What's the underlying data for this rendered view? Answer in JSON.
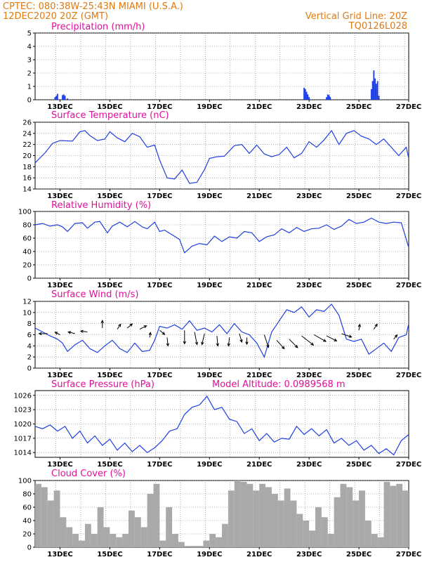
{
  "header": {
    "line1_left": "CPTEC:   080:38W-25:43N   MIAMI (U.S.A.)",
    "line2_left": "12DEC2020 20Z (GMT)",
    "line2_right": "Vertical Grid Line: 20Z",
    "line3_right": "TQ0126L028"
  },
  "colors": {
    "header": "#e07a10",
    "title": "#e0109a",
    "line": "#1f3fe0",
    "cloud": "#a9a9a9",
    "arrow": "#000000"
  },
  "chart_data": [
    {
      "id": "precip",
      "type": "bar",
      "title": "Precipitation (mm/h)",
      "ylim": [
        0,
        5
      ],
      "yticks": [
        0,
        1,
        2,
        3,
        4,
        5
      ],
      "xticks": [
        "13DEC",
        "15DEC",
        "17DEC",
        "19DEC",
        "21DEC",
        "23DEC",
        "25DEC",
        "27DEC"
      ],
      "x_unit": "day of December 2020 (decimal, GMT)",
      "x": [
        12.8,
        12.85,
        12.9,
        13.1,
        13.15,
        13.2,
        13.3,
        22.8,
        22.85,
        22.9,
        22.95,
        23.0,
        23.7,
        23.75,
        23.8,
        23.85,
        25.5,
        25.55,
        25.6,
        25.65,
        25.7,
        25.75,
        25.8
      ],
      "values": [
        0.2,
        0.3,
        0.45,
        0.35,
        0.4,
        0.3,
        0.1,
        0.9,
        0.8,
        0.6,
        0.4,
        0.2,
        0.2,
        0.4,
        0.35,
        0.2,
        0.8,
        1.4,
        2.2,
        1.6,
        1.2,
        1.4,
        0.3
      ]
    },
    {
      "id": "temp",
      "type": "line",
      "title": "Surface Temperature (nC)",
      "ylim": [
        14,
        26
      ],
      "yticks": [
        14,
        16,
        18,
        20,
        22,
        24,
        26
      ],
      "xticks": [
        "13DEC",
        "15DEC",
        "17DEC",
        "19DEC",
        "21DEC",
        "23DEC",
        "25DEC",
        "27DEC"
      ],
      "x": [
        12.0,
        12.4,
        12.7,
        13.0,
        13.5,
        13.8,
        14.0,
        14.2,
        14.5,
        14.8,
        15.0,
        15.3,
        15.6,
        15.9,
        16.2,
        16.5,
        16.8,
        17.0,
        17.3,
        17.6,
        17.9,
        18.2,
        18.5,
        18.8,
        19.0,
        19.3,
        19.6,
        20.0,
        20.3,
        20.6,
        20.9,
        21.2,
        21.5,
        21.8,
        22.1,
        22.4,
        22.7,
        23.0,
        23.3,
        23.6,
        23.9,
        24.2,
        24.5,
        24.8,
        25.1,
        25.4,
        25.7,
        26.0,
        26.3,
        26.6,
        26.9,
        27.0
      ],
      "values": [
        18.7,
        20.5,
        22.2,
        22.7,
        22.6,
        24.3,
        24.5,
        23.6,
        22.7,
        23.0,
        24.3,
        23.2,
        22.5,
        24.0,
        23.4,
        21.5,
        21.9,
        19.2,
        16.0,
        15.8,
        17.4,
        15.0,
        15.2,
        17.5,
        19.5,
        19.8,
        19.9,
        21.8,
        22.0,
        20.4,
        21.9,
        20.3,
        19.8,
        20.2,
        21.5,
        19.6,
        20.4,
        22.5,
        21.5,
        22.8,
        24.5,
        22.0,
        24.0,
        24.5,
        23.5,
        23.0,
        22.0,
        23.0,
        21.5,
        20.0,
        21.5,
        19.5
      ]
    },
    {
      "id": "rh",
      "type": "line",
      "title": "Relative Humidity (%)",
      "ylim": [
        0,
        100
      ],
      "yticks": [
        0,
        20,
        40,
        60,
        80,
        100
      ],
      "xticks": [
        "13DEC",
        "15DEC",
        "17DEC",
        "19DEC",
        "21DEC",
        "23DEC",
        "25DEC",
        "27DEC"
      ],
      "x": [
        12.0,
        12.3,
        12.6,
        12.9,
        13.1,
        13.3,
        13.6,
        13.9,
        14.1,
        14.4,
        14.6,
        14.9,
        15.1,
        15.4,
        15.7,
        16.0,
        16.3,
        16.5,
        16.8,
        17.0,
        17.2,
        17.5,
        17.8,
        18.0,
        18.3,
        18.6,
        18.9,
        19.2,
        19.5,
        19.8,
        20.1,
        20.4,
        20.7,
        21.0,
        21.3,
        21.6,
        21.9,
        22.2,
        22.5,
        22.8,
        23.1,
        23.4,
        23.7,
        24.0,
        24.3,
        24.6,
        24.9,
        25.2,
        25.5,
        25.8,
        26.1,
        26.4,
        26.7,
        27.0
      ],
      "values": [
        80,
        82,
        78,
        80,
        77,
        70,
        82,
        83,
        75,
        84,
        85,
        68,
        78,
        84,
        77,
        85,
        77,
        74,
        84,
        70,
        72,
        65,
        58,
        38,
        48,
        52,
        50,
        63,
        55,
        62,
        60,
        70,
        68,
        55,
        62,
        65,
        74,
        68,
        76,
        70,
        74,
        75,
        80,
        73,
        78,
        88,
        82,
        84,
        90,
        84,
        82,
        84,
        83,
        46
      ]
    },
    {
      "id": "wind",
      "type": "line",
      "title": "Surface Wind (m/s)",
      "ylim": [
        0,
        12
      ],
      "yticks": [
        0,
        2,
        4,
        6,
        8,
        10,
        12
      ],
      "xticks": [
        "13DEC",
        "15DEC",
        "17DEC",
        "19DEC",
        "21DEC",
        "23DEC",
        "25DEC",
        "27DEC"
      ],
      "x": [
        12.0,
        12.3,
        12.6,
        12.9,
        13.1,
        13.3,
        13.6,
        13.9,
        14.2,
        14.5,
        14.8,
        15.1,
        15.4,
        15.7,
        16.0,
        16.3,
        16.6,
        16.8,
        17.0,
        17.3,
        17.6,
        17.9,
        18.2,
        18.5,
        18.8,
        19.1,
        19.4,
        19.7,
        20.0,
        20.3,
        20.6,
        20.9,
        21.2,
        21.5,
        21.8,
        22.1,
        22.4,
        22.7,
        23.0,
        23.3,
        23.6,
        23.9,
        24.2,
        24.5,
        24.8,
        25.1,
        25.4,
        25.7,
        26.0,
        26.3,
        26.6,
        26.9,
        27.0
      ],
      "values": [
        7.2,
        6.5,
        5.8,
        5.2,
        4.5,
        3.0,
        4.2,
        5.0,
        3.5,
        2.8,
        4.0,
        5.0,
        3.5,
        2.8,
        4.5,
        3.0,
        3.2,
        5.0,
        7.5,
        7.2,
        7.8,
        7.0,
        8.5,
        6.8,
        7.2,
        6.5,
        7.8,
        6.2,
        8.0,
        6.5,
        6.0,
        4.5,
        2.0,
        6.5,
        8.5,
        10.5,
        10.0,
        11.0,
        9.2,
        10.5,
        10.2,
        11.5,
        9.5,
        5.2,
        4.8,
        5.2,
        2.5,
        3.5,
        4.5,
        3.0,
        5.5,
        6.0,
        8.0
      ],
      "arrows": [
        {
          "x": 12.5,
          "y": 6.2,
          "u": -1.0,
          "v": 0.0
        },
        {
          "x": 13.0,
          "y": 6.0,
          "u": -0.6,
          "v": 0.3
        },
        {
          "x": 13.6,
          "y": 6.2,
          "u": -0.8,
          "v": 0.2
        },
        {
          "x": 14.1,
          "y": 6.5,
          "u": -0.8,
          "v": 0.1
        },
        {
          "x": 14.7,
          "y": 7.2,
          "u": 0.0,
          "v": 0.9
        },
        {
          "x": 15.3,
          "y": 7.0,
          "u": 0.4,
          "v": 0.6
        },
        {
          "x": 15.7,
          "y": 7.2,
          "u": 0.6,
          "v": 0.5
        },
        {
          "x": 16.2,
          "y": 7.0,
          "u": 0.8,
          "v": 0.4
        },
        {
          "x": 16.6,
          "y": 5.5,
          "u": 0.1,
          "v": 0.6
        },
        {
          "x": 17.0,
          "y": 6.8,
          "u": 0.6,
          "v": -0.5
        },
        {
          "x": 17.3,
          "y": 5.5,
          "u": 0.1,
          "v": -1.0
        },
        {
          "x": 18.0,
          "y": 6.8,
          "u": 0.0,
          "v": -1.6
        },
        {
          "x": 18.4,
          "y": 6.5,
          "u": 0.3,
          "v": -1.5
        },
        {
          "x": 18.8,
          "y": 6.2,
          "u": -0.3,
          "v": -1.3
        },
        {
          "x": 19.3,
          "y": 5.8,
          "u": 0.1,
          "v": -1.2
        },
        {
          "x": 19.8,
          "y": 5.5,
          "u": -0.1,
          "v": -1.0
        },
        {
          "x": 20.2,
          "y": 6.2,
          "u": 0.3,
          "v": -1.0
        },
        {
          "x": 20.5,
          "y": 5.5,
          "u": 0.0,
          "v": -0.8
        },
        {
          "x": 21.2,
          "y": 6.0,
          "u": 0.5,
          "v": -1.5
        },
        {
          "x": 21.7,
          "y": 5.0,
          "u": 0.9,
          "v": -1.0
        },
        {
          "x": 22.2,
          "y": 5.2,
          "u": 1.0,
          "v": -1.0
        },
        {
          "x": 22.7,
          "y": 5.8,
          "u": 1.4,
          "v": -1.1
        },
        {
          "x": 23.2,
          "y": 6.0,
          "u": 1.4,
          "v": -0.8
        },
        {
          "x": 23.7,
          "y": 5.8,
          "u": 1.2,
          "v": -0.6
        },
        {
          "x": 24.3,
          "y": 6.2,
          "u": 1.2,
          "v": -0.4
        },
        {
          "x": 25.0,
          "y": 6.8,
          "u": 0.1,
          "v": 0.7
        },
        {
          "x": 25.6,
          "y": 7.0,
          "u": 0.4,
          "v": 0.6
        },
        {
          "x": 26.4,
          "y": 5.2,
          "u": 0.4,
          "v": 0.5
        }
      ]
    },
    {
      "id": "pressure",
      "type": "line",
      "title": "Surface Pressure (hPa)",
      "annotation": "Model Altitude: 0.0989568 m",
      "ylim": [
        1013,
        1027
      ],
      "yticks": [
        1014,
        1017,
        1020,
        1023,
        1026
      ],
      "xticks": [
        "13DEC",
        "15DEC",
        "17DEC",
        "19DEC",
        "21DEC",
        "23DEC",
        "25DEC",
        "27DEC"
      ],
      "x": [
        12.0,
        12.3,
        12.6,
        12.9,
        13.2,
        13.5,
        13.8,
        14.1,
        14.4,
        14.7,
        15.0,
        15.3,
        15.6,
        15.9,
        16.2,
        16.5,
        16.8,
        17.1,
        17.4,
        17.7,
        18.0,
        18.3,
        18.6,
        18.9,
        19.2,
        19.5,
        19.8,
        20.1,
        20.4,
        20.7,
        21.0,
        21.3,
        21.6,
        21.9,
        22.2,
        22.5,
        22.8,
        23.1,
        23.4,
        23.7,
        24.0,
        24.3,
        24.6,
        24.9,
        25.2,
        25.5,
        25.8,
        26.1,
        26.4,
        26.7,
        27.0
      ],
      "values": [
        1019.5,
        1019.0,
        1019.8,
        1018.5,
        1019.5,
        1017.0,
        1018.5,
        1016.0,
        1017.5,
        1015.5,
        1016.8,
        1014.5,
        1016.0,
        1014.2,
        1015.5,
        1014.0,
        1015.0,
        1016.5,
        1018.5,
        1019.0,
        1022.0,
        1023.5,
        1024.0,
        1025.8,
        1023.0,
        1023.5,
        1021.0,
        1020.5,
        1018.0,
        1019.0,
        1016.5,
        1018.0,
        1016.2,
        1017.0,
        1016.8,
        1019.5,
        1017.8,
        1019.0,
        1017.5,
        1018.8,
        1016.0,
        1017.0,
        1015.5,
        1016.5,
        1014.5,
        1015.5,
        1013.8,
        1014.8,
        1013.5,
        1016.5,
        1017.8
      ]
    },
    {
      "id": "cloud",
      "type": "bar",
      "title": "Cloud Cover (%)",
      "ylim": [
        0,
        100
      ],
      "yticks": [
        0,
        20,
        40,
        60,
        80,
        100
      ],
      "xticks": [
        "13DEC",
        "15DEC",
        "17DEC",
        "19DEC",
        "21DEC",
        "23DEC",
        "25DEC",
        "27DEC"
      ],
      "x": [
        12.0,
        12.25,
        12.5,
        12.75,
        13.0,
        13.25,
        13.5,
        13.75,
        14.0,
        14.25,
        14.5,
        14.75,
        15.0,
        15.25,
        15.5,
        15.75,
        16.0,
        16.25,
        16.5,
        16.75,
        17.0,
        17.25,
        17.5,
        17.75,
        18.0,
        18.25,
        18.5,
        18.75,
        19.0,
        19.25,
        19.5,
        19.75,
        20.0,
        20.25,
        20.5,
        20.75,
        21.0,
        21.25,
        21.5,
        21.75,
        22.0,
        22.25,
        22.5,
        22.75,
        23.0,
        23.25,
        23.5,
        23.75,
        24.0,
        24.25,
        24.5,
        24.75,
        25.0,
        25.25,
        25.5,
        25.75,
        26.0,
        26.25,
        26.5,
        26.75,
        27.0
      ],
      "values": [
        95,
        90,
        70,
        85,
        45,
        30,
        20,
        10,
        35,
        20,
        60,
        30,
        20,
        15,
        20,
        55,
        45,
        30,
        80,
        95,
        10,
        60,
        20,
        8,
        2,
        2,
        2,
        10,
        20,
        15,
        35,
        85,
        100,
        98,
        95,
        85,
        95,
        90,
        80,
        70,
        88,
        70,
        50,
        40,
        25,
        60,
        45,
        20,
        75,
        95,
        90,
        70,
        85,
        40,
        20,
        15,
        98,
        92,
        95,
        85,
        75
      ]
    }
  ]
}
